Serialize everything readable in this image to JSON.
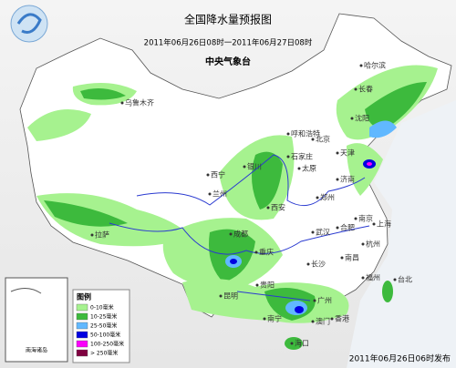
{
  "header": {
    "title": "全国降水量预报图",
    "period": "2011年06月26日08时一2011年06月27日08时",
    "issuer": "中央气象台"
  },
  "cities": [
    "哈尔滨",
    "长春",
    "沈阳",
    "乌鲁木齐",
    "呼和浩特",
    "北京",
    "天津",
    "石家庄",
    "银川",
    "太原",
    "济南",
    "西宁",
    "兰州",
    "郑州",
    "西安",
    "合肥",
    "南京",
    "上海",
    "拉萨",
    "成都",
    "武汉",
    "杭州",
    "重庆",
    "长沙",
    "南昌",
    "贵阳",
    "福州",
    "昆明",
    "台北",
    "南宁",
    "广州",
    "香港",
    "澳门",
    "海口"
  ],
  "legend": {
    "title": "图例",
    "items": [
      {
        "label": "0-10毫米",
        "color": "#a6f28f"
      },
      {
        "label": "10-25毫米",
        "color": "#3dba3d"
      },
      {
        "label": "25-50毫米",
        "color": "#61b8ff"
      },
      {
        "label": "50-100毫米",
        "color": "#0000e1"
      },
      {
        "label": "100-250毫米",
        "color": "#fa00fa"
      },
      {
        "label": "> 250毫米",
        "color": "#800040"
      }
    ]
  },
  "inset": {
    "label": "南海诸岛"
  },
  "footer": "2011年06月26日06时发布"
}
